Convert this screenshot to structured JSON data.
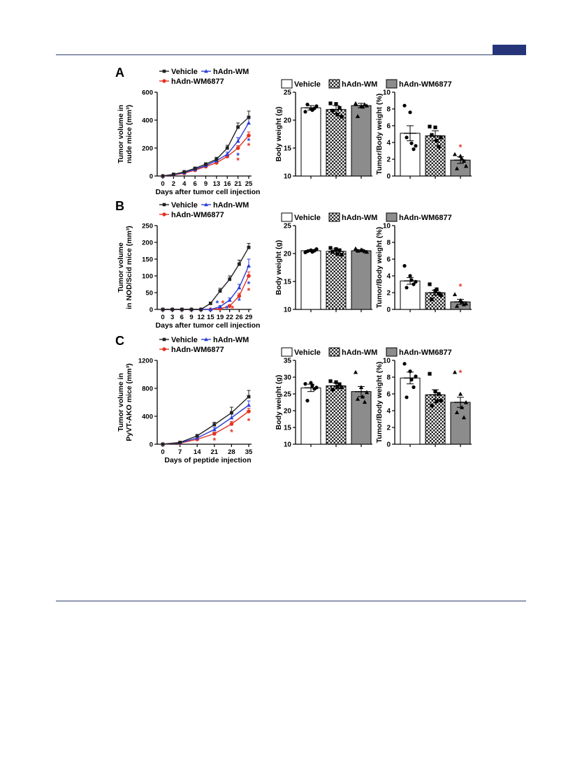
{
  "colors": {
    "vehicle": "#222222",
    "hadn_wm": "#2b3fd6",
    "hadn_wm6877": "#e53224",
    "bar_vehicle": "#ffffff",
    "bar_hadn_wm6877": "#8c8c8c",
    "header_rule": "#2e3b6b",
    "header_tab": "#26357a"
  },
  "legend": {
    "vehicle": "Vehicle",
    "hadn_wm": "hAdn-WM",
    "hadn_wm6877": "hAdn-WM6877"
  },
  "panels": [
    {
      "letter": "A",
      "significance_mark": "*",
      "line": {
        "type": "line",
        "ylabel_line1": "Tumor volume in",
        "ylabel_line2": "nude mice (mm³)",
        "xlabel": "Days after tumor cell injection",
        "ylim": [
          0,
          600
        ],
        "yticks": [
          0,
          200,
          400,
          600
        ],
        "x": [
          0,
          2,
          4,
          6,
          9,
          13,
          16,
          21,
          25
        ],
        "series": [
          {
            "key": "vehicle",
            "values": [
              0,
              12,
              30,
              55,
              85,
              120,
              200,
              350,
              420
            ],
            "err": [
              0,
              4,
              6,
              8,
              10,
              14,
              20,
              30,
              45
            ]
          },
          {
            "key": "hadn_wm",
            "values": [
              0,
              10,
              25,
              48,
              75,
              110,
              155,
              250,
              380
            ],
            "err": [
              0,
              3,
              5,
              7,
              9,
              12,
              16,
              25,
              35
            ]
          },
          {
            "key": "hadn_wm6877",
            "values": [
              0,
              8,
              20,
              42,
              68,
              95,
              140,
              200,
              290
            ],
            "err": [
              0,
              3,
              4,
              6,
              8,
              10,
              14,
              18,
              25
            ]
          }
        ],
        "stars": [
          {
            "x": 21,
            "y": 145,
            "series": "hadn_wm"
          },
          {
            "x": 21,
            "y": 110,
            "series": "hadn_wm6877"
          },
          {
            "x": 25,
            "y": 250,
            "series": "hadn_wm"
          },
          {
            "x": 25,
            "y": 215,
            "series": "hadn_wm6877"
          }
        ]
      },
      "body": {
        "type": "bar",
        "ylabel": "Body weight (g)",
        "ylim": [
          10,
          25
        ],
        "yticks": [
          10,
          15,
          20,
          25
        ],
        "values": [
          22.2,
          21.9,
          22.6
        ],
        "err": [
          0.4,
          0.7,
          0.4
        ],
        "points": [
          [
            21.5,
            22.0,
            22.5,
            22.8,
            22.1,
            21.8
          ],
          [
            23.0,
            22.9,
            20.6,
            21.7,
            22.2,
            21.0
          ],
          [
            23.0,
            22.5,
            22.6,
            20.7,
            22.8,
            22.4
          ]
        ],
        "stars": []
      },
      "ratio": {
        "type": "bar",
        "ylabel": "Tumor/Body weight (%)",
        "ylim": [
          0,
          10
        ],
        "yticks": [
          0,
          2,
          4,
          6,
          8,
          10
        ],
        "values": [
          5.1,
          4.8,
          1.9
        ],
        "err": [
          0.9,
          0.6,
          0.4
        ],
        "points": [
          [
            8.4,
            7.6,
            3.6,
            4.6,
            3.2,
            3.9
          ],
          [
            5.9,
            5.8,
            4.6,
            4.9,
            3.5,
            4.2
          ],
          [
            2.6,
            2.4,
            1.2,
            0.9,
            1.8,
            2.1
          ]
        ],
        "stars": [
          {
            "index": 2,
            "y": 3.5
          }
        ]
      }
    },
    {
      "letter": "B",
      "significance_mark": "*",
      "line": {
        "type": "line",
        "ylabel_line1": "Tumor volume",
        "ylabel_line2": "in NOD/Scid mice (mm³)",
        "xlabel": "Days after tumor cell injection",
        "ylim": [
          0,
          250
        ],
        "yticks": [
          0,
          50,
          100,
          150,
          200,
          250
        ],
        "x": [
          0,
          3,
          6,
          9,
          12,
          15,
          19,
          22,
          26,
          29
        ],
        "series": [
          {
            "key": "vehicle",
            "values": [
              0,
              0,
              0,
              0,
              0,
              18,
              55,
              90,
              135,
              185
            ],
            "err": [
              0,
              0,
              0,
              0,
              0,
              4,
              8,
              10,
              12,
              12
            ]
          },
          {
            "key": "hadn_wm",
            "values": [
              0,
              0,
              0,
              0,
              0,
              0,
              8,
              28,
              65,
              130
            ],
            "err": [
              0,
              0,
              0,
              0,
              0,
              0,
              3,
              6,
              10,
              20
            ]
          },
          {
            "key": "hadn_wm6877",
            "values": [
              0,
              0,
              0,
              0,
              0,
              0,
              2,
              10,
              40,
              100
            ],
            "err": [
              0,
              0,
              0,
              0,
              0,
              0,
              2,
              4,
              8,
              12
            ]
          }
        ],
        "stars": [
          {
            "x": 19,
            "y": 18,
            "series": "hadn_wm"
          },
          {
            "x": 19,
            "y": 18,
            "series": "hadn_wm6877"
          },
          {
            "x": 22,
            "y": 2,
            "series": "hadn_wm"
          },
          {
            "x": 22,
            "y": 2,
            "series": "hadn_wm6877"
          },
          {
            "x": 26,
            "y": 25,
            "series": "hadn_wm"
          },
          {
            "x": 29,
            "y": 75,
            "series": "hadn_wm"
          },
          {
            "x": 29,
            "y": 55,
            "series": "hadn_wm6877"
          }
        ]
      },
      "body": {
        "type": "bar",
        "ylabel": "Body weight (g)",
        "ylim": [
          10,
          25
        ],
        "yticks": [
          10,
          15,
          20,
          25
        ],
        "values": [
          20.5,
          20.4,
          20.5
        ],
        "err": [
          0.2,
          0.4,
          0.2
        ],
        "points": [
          [
            20.2,
            20.6,
            20.8,
            20.4,
            20.5,
            20.3
          ],
          [
            21.0,
            20.8,
            19.8,
            20.3,
            20.6,
            19.9
          ],
          [
            20.9,
            20.7,
            20.3,
            20.5,
            20.4,
            20.6
          ]
        ],
        "stars": []
      },
      "ratio": {
        "type": "bar",
        "ylabel": "Tumor/Body weight (%)",
        "ylim": [
          0,
          10
        ],
        "yticks": [
          0,
          2,
          4,
          6,
          8,
          10
        ],
        "values": [
          3.4,
          2.0,
          0.9
        ],
        "err": [
          0.4,
          0.3,
          0.3
        ],
        "points": [
          [
            5.2,
            4.0,
            3.3,
            2.6,
            3.0,
            3.5
          ],
          [
            3.0,
            2.2,
            1.7,
            1.2,
            1.9,
            2.4
          ],
          [
            1.8,
            1.1,
            0.7,
            0.4,
            0.6,
            0.9
          ]
        ],
        "stars": [
          {
            "index": 2,
            "y": 2.8
          }
        ]
      }
    },
    {
      "letter": "C",
      "significance_mark": "*",
      "line": {
        "type": "line",
        "ylabel_line1": "Tumor volume in",
        "ylabel_line2": "PyVT-AKO mice (mm³)",
        "xlabel": "Days of peptide injection",
        "ylim": [
          0,
          1200
        ],
        "yticks": [
          0,
          400,
          800,
          1200
        ],
        "x": [
          0,
          7,
          14,
          21,
          28,
          35
        ],
        "series": [
          {
            "key": "vehicle",
            "values": [
              0,
              25,
              120,
              280,
              450,
              680
            ],
            "err": [
              0,
              6,
              20,
              35,
              80,
              90
            ]
          },
          {
            "key": "hadn_wm",
            "values": [
              0,
              20,
              90,
              210,
              380,
              560
            ],
            "err": [
              0,
              5,
              15,
              30,
              50,
              60
            ]
          },
          {
            "key": "hadn_wm6877",
            "values": [
              0,
              15,
              70,
              150,
              290,
              470
            ],
            "err": [
              0,
              4,
              12,
              22,
              35,
              45
            ]
          }
        ],
        "stars": [
          {
            "x": 21,
            "y": 50,
            "series": "hadn_wm6877"
          },
          {
            "x": 28,
            "y": 170,
            "series": "hadn_wm6877"
          },
          {
            "x": 35,
            "y": 330,
            "series": "hadn_wm6877"
          }
        ]
      },
      "body": {
        "type": "bar",
        "ylabel": "Body weight (g)",
        "ylim": [
          10,
          35
        ],
        "yticks": [
          10,
          15,
          20,
          25,
          30,
          35
        ],
        "values": [
          26.8,
          27.4,
          25.7
        ],
        "err": [
          1.1,
          0.9,
          1.5
        ],
        "points": [
          [
            28.0,
            28.3,
            26.9,
            23.0,
            26.5,
            27.5
          ],
          [
            28.8,
            28.5,
            27.0,
            26.3,
            27.9,
            27.2
          ],
          [
            31.5,
            27.0,
            25.5,
            23.5,
            22.6,
            24.2
          ]
        ],
        "stars": []
      },
      "ratio": {
        "type": "bar",
        "ylabel": "Tumor/Body weight (%)",
        "ylim": [
          0,
          10
        ],
        "yticks": [
          0,
          2,
          4,
          6,
          8,
          10
        ],
        "values": [
          7.9,
          5.9,
          5.0
        ],
        "err": [
          0.7,
          0.6,
          0.6
        ],
        "points": [
          [
            9.6,
            8.7,
            8.1,
            5.6,
            6.8,
            7.7
          ],
          [
            8.4,
            6.3,
            5.2,
            4.6,
            6.0,
            5.1
          ],
          [
            8.6,
            6.0,
            5.0,
            3.8,
            3.2,
            4.4
          ]
        ],
        "stars": [
          {
            "index": 2,
            "y": 8.6
          }
        ]
      }
    }
  ]
}
